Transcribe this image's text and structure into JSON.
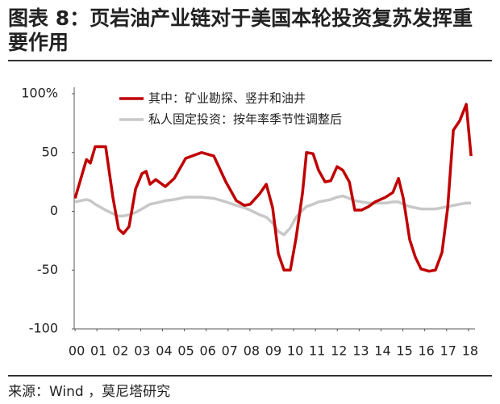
{
  "chart_data": {
    "type": "line",
    "title": "图表 8：页岩油产业链对于美国本轮投资复苏发挥重要作用",
    "source": "来源：Wind ，莫尼塔研究",
    "x": [
      0,
      0.52,
      0.7,
      0.92,
      1.4,
      1.73,
      1.99,
      2.21,
      2.47,
      2.77,
      3.06,
      3.25,
      3.43,
      3.69,
      4.13,
      4.54,
      5.06,
      5.79,
      6.35,
      6.9,
      7.38,
      7.75,
      8.01,
      8.45,
      8.75,
      9.04,
      9.3,
      9.56,
      9.85,
      10.11,
      10.41,
      10.59,
      10.89,
      11.14,
      11.44,
      11.7,
      11.99,
      12.25,
      12.55,
      12.8,
      13.1,
      13.43,
      13.73,
      14.21,
      14.54,
      14.8,
      15.02,
      15.31,
      15.57,
      15.83,
      16.2,
      16.49,
      16.79,
      17.05,
      17.31,
      17.6,
      17.9,
      18.12
    ],
    "series": [
      {
        "name": "其中：矿业勘探、竖井和油井",
        "color": "#c00000",
        "values": [
          11,
          44,
          41,
          55,
          55,
          12,
          -15,
          -19,
          -13,
          19,
          32,
          34,
          23,
          27,
          21,
          28,
          45,
          50,
          47,
          25,
          9,
          5,
          6,
          15,
          23,
          3,
          -36,
          -50,
          -50,
          -23,
          16,
          50,
          49,
          35,
          25,
          26,
          38,
          35,
          25,
          1,
          1,
          4,
          8,
          12,
          16,
          28,
          11,
          -24,
          -39,
          -49,
          -51,
          -50,
          -35,
          3,
          69,
          77,
          91,
          47
        ]
      },
      {
        "name": "私人固定投资：按年率季节性调整后",
        "color": "#c8c8c8",
        "values": [
          8,
          10,
          9,
          6,
          1,
          -2,
          -4,
          -4,
          -3,
          -1,
          2,
          4,
          6,
          7,
          9,
          10,
          12,
          12,
          11,
          8,
          5,
          3,
          1,
          -3,
          -5,
          -10,
          -17,
          -20,
          -14,
          -5,
          1,
          4,
          6,
          8,
          9,
          10,
          12,
          13,
          11,
          9,
          8,
          7,
          7,
          7,
          8,
          8,
          6,
          4,
          3,
          2,
          2,
          2,
          3,
          4,
          5,
          6,
          7,
          7
        ]
      }
    ],
    "xlim": [
      -0.04,
      18.3
    ],
    "xticks": [
      {
        "value": 0,
        "label": "00"
      },
      {
        "value": 1,
        "label": "01"
      },
      {
        "value": 2,
        "label": "02"
      },
      {
        "value": 3,
        "label": "03"
      },
      {
        "value": 4,
        "label": "04"
      },
      {
        "value": 5,
        "label": "05"
      },
      {
        "value": 6,
        "label": "06"
      },
      {
        "value": 7,
        "label": "07"
      },
      {
        "value": 8,
        "label": "08"
      },
      {
        "value": 9,
        "label": "09"
      },
      10,
      11,
      12,
      13,
      14,
      15,
      16,
      17,
      18
    ],
    "ylim": [
      -100,
      100
    ],
    "yticks": [
      -100,
      -50,
      0,
      50,
      {
        "value": 100,
        "label": "100%"
      }
    ],
    "grid": false,
    "legend": "top"
  }
}
